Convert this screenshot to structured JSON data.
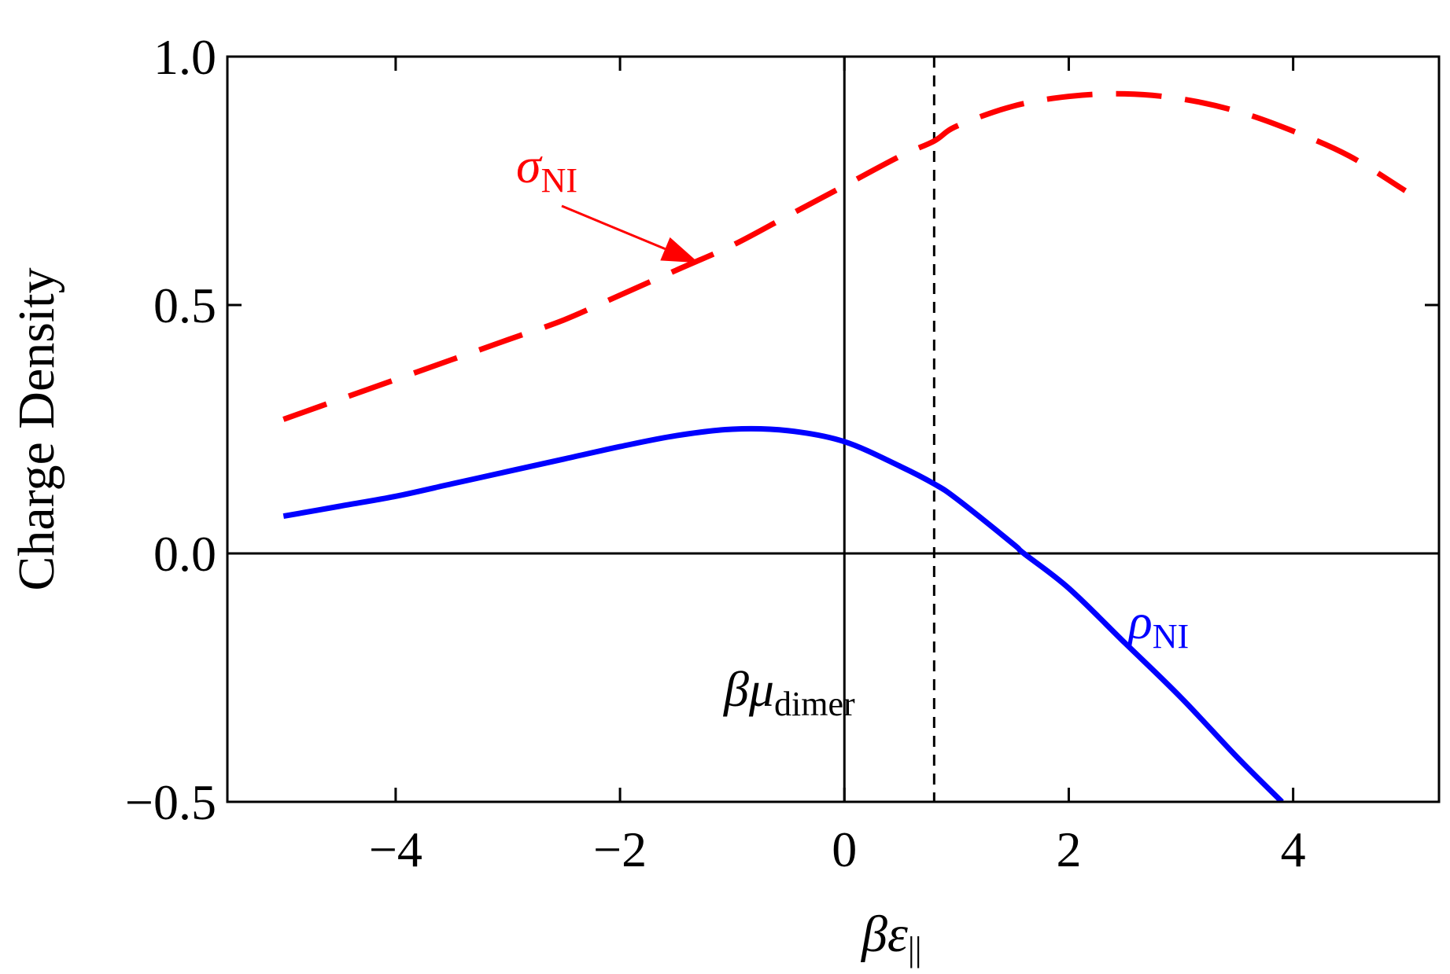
{
  "chart_data": {
    "type": "line",
    "title": "",
    "xlabel": {
      "main": "βε",
      "sub": "||"
    },
    "ylabel": "Charge Density",
    "xlim": [
      -5.5,
      5.3
    ],
    "ylim": [
      -0.5,
      1.0
    ],
    "x_ticks": [
      -4,
      -2,
      0,
      2,
      4
    ],
    "x_tick_labels": [
      "−4",
      "−2",
      "0",
      "2",
      "4"
    ],
    "y_ticks": [
      -0.5,
      0.0,
      0.5,
      1.0
    ],
    "y_tick_labels": [
      "−0.5",
      "0.0",
      "0.5",
      "1.0"
    ],
    "grid": false,
    "reference_lines": {
      "x_zero": 0,
      "y_zero": 0,
      "mu_dimer": 0.8
    },
    "series": [
      {
        "name": "σNI",
        "color": "#ff0000",
        "style": "dashed",
        "x": [
          -5.0,
          -4.5,
          -4.0,
          -3.5,
          -3.0,
          -2.5,
          -2.0,
          -1.5,
          -1.0,
          -0.5,
          0.0,
          0.5,
          0.8,
          1.0,
          1.5,
          2.0,
          2.5,
          3.0,
          3.5,
          4.0,
          4.5,
          5.0
        ],
        "y": [
          0.27,
          0.31,
          0.35,
          0.39,
          0.43,
          0.47,
          0.52,
          0.57,
          0.62,
          0.68,
          0.74,
          0.8,
          0.83,
          0.86,
          0.9,
          0.92,
          0.925,
          0.915,
          0.89,
          0.85,
          0.8,
          0.73
        ]
      },
      {
        "name": "ρNI",
        "color": "#0000ff",
        "style": "solid",
        "x": [
          -5.0,
          -4.5,
          -4.0,
          -3.5,
          -3.0,
          -2.5,
          -2.0,
          -1.5,
          -1.0,
          -0.5,
          0.0,
          0.5,
          0.8,
          1.0,
          1.5,
          1.6,
          2.0,
          2.5,
          3.0,
          3.5,
          3.9
        ],
        "y": [
          0.075,
          0.095,
          0.115,
          0.14,
          0.165,
          0.19,
          0.215,
          0.237,
          0.25,
          0.247,
          0.225,
          0.175,
          0.14,
          0.11,
          0.02,
          0.0,
          -0.07,
          -0.18,
          -0.29,
          -0.41,
          -0.5
        ]
      }
    ],
    "annotations": [
      {
        "id": "sigma",
        "main": "σ",
        "sub": "NI",
        "color": "#ff0000",
        "arrow_to_x": -1.3,
        "arrow_to_y": 0.585
      },
      {
        "id": "rho",
        "main": "ρ",
        "sub": "NI",
        "color": "#0000ff"
      },
      {
        "id": "mu",
        "main": "βμ",
        "sub": "dimer",
        "color": "#000000"
      }
    ]
  }
}
